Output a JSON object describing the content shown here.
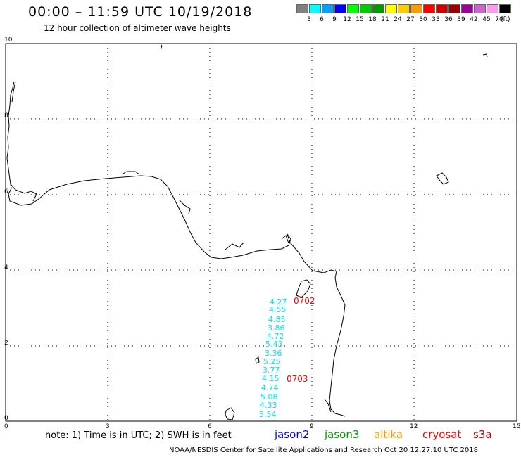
{
  "header": {
    "title": "00:00 – 11:59 UTC 10/19/2018",
    "subtitle": "12 hour collection of altimeter wave heights"
  },
  "legend": {
    "unit": "(ft)",
    "bins": [
      {
        "label": "3",
        "color": "#808080"
      },
      {
        "label": "6",
        "color": "#00ffff"
      },
      {
        "label": "9",
        "color": "#00a0ff"
      },
      {
        "label": "12",
        "color": "#0000ff"
      },
      {
        "label": "15",
        "color": "#00ff00"
      },
      {
        "label": "18",
        "color": "#00cc00"
      },
      {
        "label": "21",
        "color": "#009900"
      },
      {
        "label": "24",
        "color": "#ffff00"
      },
      {
        "label": "27",
        "color": "#ffcc00"
      },
      {
        "label": "30",
        "color": "#ff9900"
      },
      {
        "label": "33",
        "color": "#ff0000"
      },
      {
        "label": "36",
        "color": "#cc0000"
      },
      {
        "label": "39",
        "color": "#990000"
      },
      {
        "label": "42",
        "color": "#990099"
      },
      {
        "label": "45",
        "color": "#cc66cc"
      },
      {
        "label": "70",
        "color": "#ff99ee"
      },
      {
        "label": "",
        "color": "#000000"
      }
    ]
  },
  "axes": {
    "y_labels": [
      "10",
      "8",
      "6",
      "4",
      "2",
      "0"
    ],
    "x_labels": [
      "0",
      "3",
      "6",
      "9",
      "12",
      "15"
    ]
  },
  "wave_heights": [
    "4.27",
    "4.55",
    "4.85",
    "3.86",
    "4.72",
    "5.43",
    "3.36",
    "5.25",
    "3.77",
    "4.15",
    "4.74",
    "5.08",
    "4.33",
    "5.54"
  ],
  "passes": [
    "0702",
    "0703"
  ],
  "footer": {
    "note": "note: 1) Time is in UTC; 2) SWH is in feet",
    "credit": "NOAA/NESDIS Center for Satellite Applications and Research    Oct 20 12:27:10 UTC 2018"
  },
  "satellites": [
    {
      "name": "jason2",
      "color": "#0000ff"
    },
    {
      "name": "jason3",
      "color": "#009900"
    },
    {
      "name": "altika",
      "color": "#ff9900"
    },
    {
      "name": "cryosat",
      "color": "#ff0000"
    },
    {
      "name": "s3a",
      "color": "#cc0000"
    }
  ]
}
